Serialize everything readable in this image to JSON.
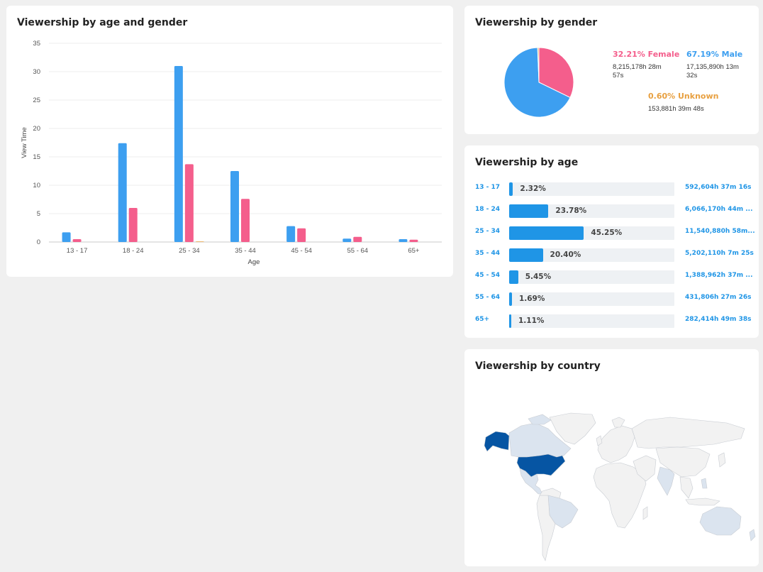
{
  "colors": {
    "male": "#3d9ff0",
    "female": "#f45e8c",
    "unknown": "#e8a040",
    "bar": "#1f95e6",
    "map_highlight": "#0655a3",
    "map_light": "#dbe4ef",
    "map_default": "#f2f2f2"
  },
  "age_gender": {
    "title": "Viewership by age and gender",
    "chart_data": {
      "type": "bar",
      "categories": [
        "13 - 17",
        "18 - 24",
        "25 - 34",
        "35 - 44",
        "45 - 54",
        "55 - 64",
        "65+"
      ],
      "series": [
        {
          "values": [
            1.7,
            17.4,
            31.0,
            12.5,
            2.8,
            0.6,
            0.5
          ]
        },
        {
          "values": [
            0.5,
            6.0,
            13.7,
            7.6,
            2.4,
            0.9,
            0.4
          ]
        },
        {
          "values": [
            0,
            0,
            0.1,
            0,
            0,
            0,
            0
          ]
        }
      ],
      "xlabel": "Age",
      "ylabel": "View Time",
      "ylim": [
        0,
        35
      ],
      "yticks": [
        0,
        5,
        10,
        15,
        20,
        25,
        30,
        35
      ],
      "grid": true
    }
  },
  "gender": {
    "title": "Viewership by gender",
    "chart_data": {
      "type": "pie",
      "series": [
        {
          "name": "Female",
          "value": 32.21
        },
        {
          "name": "Male",
          "value": 67.19
        },
        {
          "name": "Unknown",
          "value": 0.6
        }
      ]
    },
    "female": {
      "pct": "32.21% Female",
      "val": "8,215,178h 28m 57s"
    },
    "male": {
      "pct": "67.19% Male",
      "val": "17,135,890h 13m 32s"
    },
    "unknown": {
      "pct": "0.60% Unknown",
      "val": "153,881h 39m 48s"
    }
  },
  "age": {
    "title": "Viewership by age",
    "rows": [
      {
        "label": "13 - 17",
        "pct_text": "2.32%",
        "fraction": 0.0232,
        "value": "592,604h 37m 16s"
      },
      {
        "label": "18 - 24",
        "pct_text": "23.78%",
        "fraction": 0.2378,
        "value": "6,066,170h 44m ..."
      },
      {
        "label": "25 - 34",
        "pct_text": "45.25%",
        "fraction": 0.4525,
        "value": "11,540,880h 58m..."
      },
      {
        "label": "35 - 44",
        "pct_text": "20.40%",
        "fraction": 0.204,
        "value": "5,202,110h 7m 25s"
      },
      {
        "label": "45 - 54",
        "pct_text": "5.45%",
        "fraction": 0.0545,
        "value": "1,388,962h 37m ..."
      },
      {
        "label": "55 - 64",
        "pct_text": "1.69%",
        "fraction": 0.0169,
        "value": "431,806h 27m 26s"
      },
      {
        "label": "65+",
        "pct_text": "1.11%",
        "fraction": 0.0111,
        "value": "282,414h 49m 38s"
      }
    ]
  },
  "country": {
    "title": "Viewership by country"
  }
}
